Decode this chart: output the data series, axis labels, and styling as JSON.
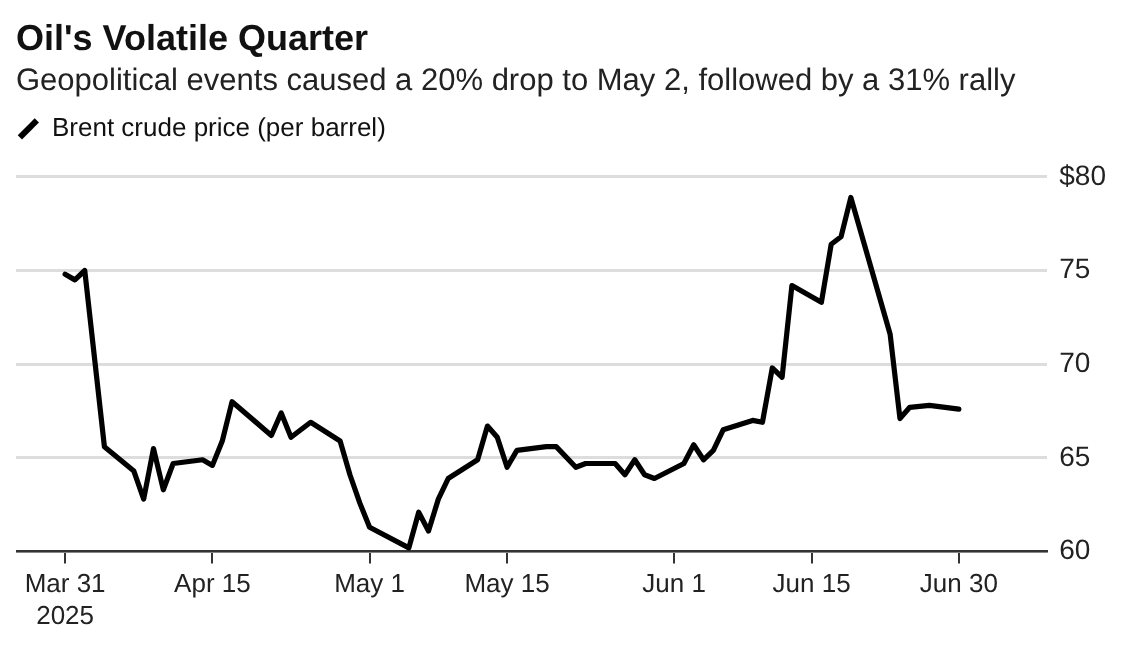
{
  "chart_data": {
    "type": "line",
    "title": "Oil's Volatile Quarter",
    "subtitle": "Geopolitical events caused a 20% drop to May 2, followed by a 31% rally",
    "x": [
      "2025-03-31",
      "2025-04-01",
      "2025-04-02",
      "2025-04-04",
      "2025-04-07",
      "2025-04-08",
      "2025-04-09",
      "2025-04-10",
      "2025-04-11",
      "2025-04-14",
      "2025-04-15",
      "2025-04-16",
      "2025-04-17",
      "2025-04-21",
      "2025-04-22",
      "2025-04-23",
      "2025-04-25",
      "2025-04-28",
      "2025-04-29",
      "2025-04-30",
      "2025-05-01",
      "2025-05-05",
      "2025-05-06",
      "2025-05-07",
      "2025-05-08",
      "2025-05-09",
      "2025-05-12",
      "2025-05-13",
      "2025-05-14",
      "2025-05-15",
      "2025-05-16",
      "2025-05-19",
      "2025-05-20",
      "2025-05-22",
      "2025-05-23",
      "2025-05-26",
      "2025-05-27",
      "2025-05-28",
      "2025-05-29",
      "2025-05-30",
      "2025-06-02",
      "2025-06-03",
      "2025-06-04",
      "2025-06-05",
      "2025-06-06",
      "2025-06-09",
      "2025-06-10",
      "2025-06-11",
      "2025-06-12",
      "2025-06-13",
      "2025-06-16",
      "2025-06-17",
      "2025-06-18",
      "2025-06-19",
      "2025-06-23",
      "2025-06-24",
      "2025-06-25",
      "2025-06-27",
      "2025-06-30"
    ],
    "series": [
      {
        "name": "Brent crude price (per barrel)",
        "color": "#000000",
        "values": [
          74.8,
          74.5,
          75.0,
          65.6,
          64.3,
          62.8,
          65.5,
          63.3,
          64.7,
          64.9,
          64.6,
          65.9,
          68.0,
          66.2,
          67.4,
          66.1,
          66.9,
          65.9,
          64.1,
          62.6,
          61.3,
          60.2,
          62.1,
          61.1,
          62.8,
          63.9,
          64.9,
          66.7,
          66.1,
          64.5,
          65.4,
          65.6,
          65.6,
          64.5,
          64.7,
          64.7,
          64.1,
          64.9,
          64.1,
          63.9,
          64.7,
          65.7,
          64.9,
          65.4,
          66.5,
          67.0,
          66.9,
          69.8,
          69.3,
          74.2,
          73.3,
          76.4,
          76.8,
          78.9,
          71.6,
          67.1,
          67.7,
          67.8,
          67.6
        ]
      }
    ],
    "xlim": [
      "2025-03-26",
      "2025-07-09"
    ],
    "xticks": [
      {
        "value": "2025-03-31",
        "label": "Mar 31\n2025"
      },
      {
        "value": "2025-04-15",
        "label": "Apr 15"
      },
      {
        "value": "2025-05-01",
        "label": "May 1"
      },
      {
        "value": "2025-05-15",
        "label": "May 15"
      },
      {
        "value": "2025-06-01",
        "label": "Jun 1"
      },
      {
        "value": "2025-06-15",
        "label": "Jun 15"
      },
      {
        "value": "2025-06-30",
        "label": "Jun 30"
      }
    ],
    "ylim": [
      60,
      80
    ],
    "yticks": [
      60,
      65,
      70,
      75,
      {
        "value": 80,
        "label": "$80"
      }
    ],
    "grid": "y",
    "legend": "top left",
    "marker": "none",
    "line_style": "solid"
  }
}
